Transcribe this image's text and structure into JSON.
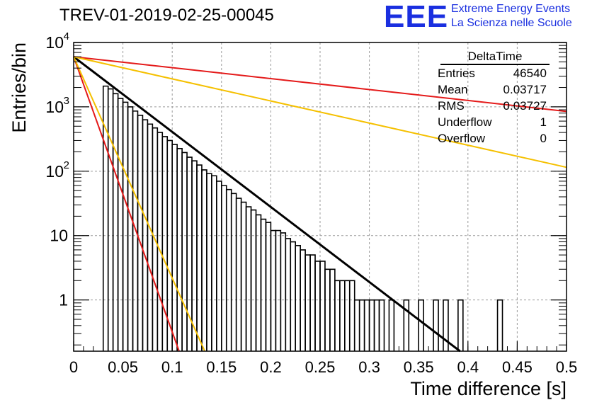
{
  "title": "TREV-01-2019-02-25-00045",
  "logo": {
    "mark": "EEE",
    "line1": "Extreme Energy Events",
    "line2": "La Scienza nelle Scuole",
    "color": "#1a2fe0"
  },
  "stats": {
    "title": "DeltaTime",
    "rows": [
      {
        "label": "Entries",
        "value": "46540"
      },
      {
        "label": "Mean",
        "value": "0.03717"
      },
      {
        "label": "RMS",
        "value": "0.03727"
      },
      {
        "label": "Underflow",
        "value": "1"
      },
      {
        "label": "Overflow",
        "value": "0"
      }
    ]
  },
  "chart_data": {
    "type": "line",
    "xlabel": "Time difference [s]",
    "ylabel": "Entries/bin",
    "xlim": [
      0,
      0.5
    ],
    "ylim": [
      0.16,
      10000
    ],
    "yscale": "log",
    "grid": true,
    "x_ticks": [
      {
        "v": 0,
        "label": "0"
      },
      {
        "v": 0.05,
        "label": "0.05"
      },
      {
        "v": 0.1,
        "label": "0.1"
      },
      {
        "v": 0.15,
        "label": "0.15"
      },
      {
        "v": 0.2,
        "label": "0.2"
      },
      {
        "v": 0.25,
        "label": "0.25"
      },
      {
        "v": 0.3,
        "label": "0.3"
      },
      {
        "v": 0.35,
        "label": "0.35"
      },
      {
        "v": 0.4,
        "label": "0.4"
      },
      {
        "v": 0.45,
        "label": "0.45"
      },
      {
        "v": 0.5,
        "label": "0.5"
      }
    ],
    "y_ticks": [
      {
        "v": 1,
        "base": "1",
        "exp": ""
      },
      {
        "v": 10,
        "base": "10",
        "exp": ""
      },
      {
        "v": 100,
        "base": "10",
        "exp": "2"
      },
      {
        "v": 1000,
        "base": "10",
        "exp": "3"
      },
      {
        "v": 10000,
        "base": "10",
        "exp": "4"
      }
    ],
    "histogram": {
      "bin_width": 0.005,
      "color": "#000000",
      "bins": [
        {
          "x": 0.03,
          "y": 2100
        },
        {
          "x": 0.035,
          "y": 1900
        },
        {
          "x": 0.04,
          "y": 1600
        },
        {
          "x": 0.045,
          "y": 1350
        },
        {
          "x": 0.05,
          "y": 1180
        },
        {
          "x": 0.055,
          "y": 1000
        },
        {
          "x": 0.06,
          "y": 860
        },
        {
          "x": 0.065,
          "y": 740
        },
        {
          "x": 0.07,
          "y": 630
        },
        {
          "x": 0.075,
          "y": 540
        },
        {
          "x": 0.08,
          "y": 470
        },
        {
          "x": 0.085,
          "y": 400
        },
        {
          "x": 0.09,
          "y": 345
        },
        {
          "x": 0.095,
          "y": 300
        },
        {
          "x": 0.1,
          "y": 260
        },
        {
          "x": 0.105,
          "y": 225
        },
        {
          "x": 0.11,
          "y": 195
        },
        {
          "x": 0.115,
          "y": 165
        },
        {
          "x": 0.12,
          "y": 145
        },
        {
          "x": 0.125,
          "y": 125
        },
        {
          "x": 0.13,
          "y": 105
        },
        {
          "x": 0.135,
          "y": 92
        },
        {
          "x": 0.14,
          "y": 85
        },
        {
          "x": 0.145,
          "y": 70
        },
        {
          "x": 0.15,
          "y": 60
        },
        {
          "x": 0.155,
          "y": 52
        },
        {
          "x": 0.16,
          "y": 45
        },
        {
          "x": 0.165,
          "y": 38
        },
        {
          "x": 0.17,
          "y": 33
        },
        {
          "x": 0.175,
          "y": 28
        },
        {
          "x": 0.18,
          "y": 25
        },
        {
          "x": 0.185,
          "y": 21
        },
        {
          "x": 0.19,
          "y": 18
        },
        {
          "x": 0.195,
          "y": 16
        },
        {
          "x": 0.2,
          "y": 12
        },
        {
          "x": 0.205,
          "y": 12
        },
        {
          "x": 0.21,
          "y": 11
        },
        {
          "x": 0.215,
          "y": 9
        },
        {
          "x": 0.22,
          "y": 8
        },
        {
          "x": 0.225,
          "y": 7
        },
        {
          "x": 0.23,
          "y": 6
        },
        {
          "x": 0.235,
          "y": 5
        },
        {
          "x": 0.24,
          "y": 5
        },
        {
          "x": 0.245,
          "y": 4
        },
        {
          "x": 0.25,
          "y": 4
        },
        {
          "x": 0.255,
          "y": 3
        },
        {
          "x": 0.26,
          "y": 3
        },
        {
          "x": 0.265,
          "y": 2
        },
        {
          "x": 0.27,
          "y": 2
        },
        {
          "x": 0.275,
          "y": 2
        },
        {
          "x": 0.28,
          "y": 2
        },
        {
          "x": 0.285,
          "y": 1
        },
        {
          "x": 0.29,
          "y": 1
        },
        {
          "x": 0.295,
          "y": 1
        },
        {
          "x": 0.3,
          "y": 1
        },
        {
          "x": 0.305,
          "y": 1
        },
        {
          "x": 0.31,
          "y": 1
        },
        {
          "x": 0.32,
          "y": 1
        },
        {
          "x": 0.335,
          "y": 1
        },
        {
          "x": 0.35,
          "y": 1
        },
        {
          "x": 0.365,
          "y": 1
        },
        {
          "x": 0.375,
          "y": 1
        },
        {
          "x": 0.39,
          "y": 1
        },
        {
          "x": 0.43,
          "y": 1
        }
      ]
    },
    "lines": [
      {
        "color": "#000000",
        "width": 3,
        "x": [
          0,
          0.392
        ],
        "y": [
          6000,
          0.16
        ]
      },
      {
        "color": "#e41a1a",
        "width": 2,
        "x": [
          0,
          0.5
        ],
        "y": [
          6000,
          850
        ]
      },
      {
        "color": "#f5c000",
        "width": 2,
        "x": [
          0,
          0.5
        ],
        "y": [
          6000,
          115
        ]
      },
      {
        "color": "#e41a1a",
        "width": 2,
        "x": [
          0,
          0.107
        ],
        "y": [
          6000,
          0.16
        ]
      },
      {
        "color": "#f5c000",
        "width": 2,
        "x": [
          0,
          0.133
        ],
        "y": [
          6000,
          0.16
        ]
      }
    ]
  }
}
